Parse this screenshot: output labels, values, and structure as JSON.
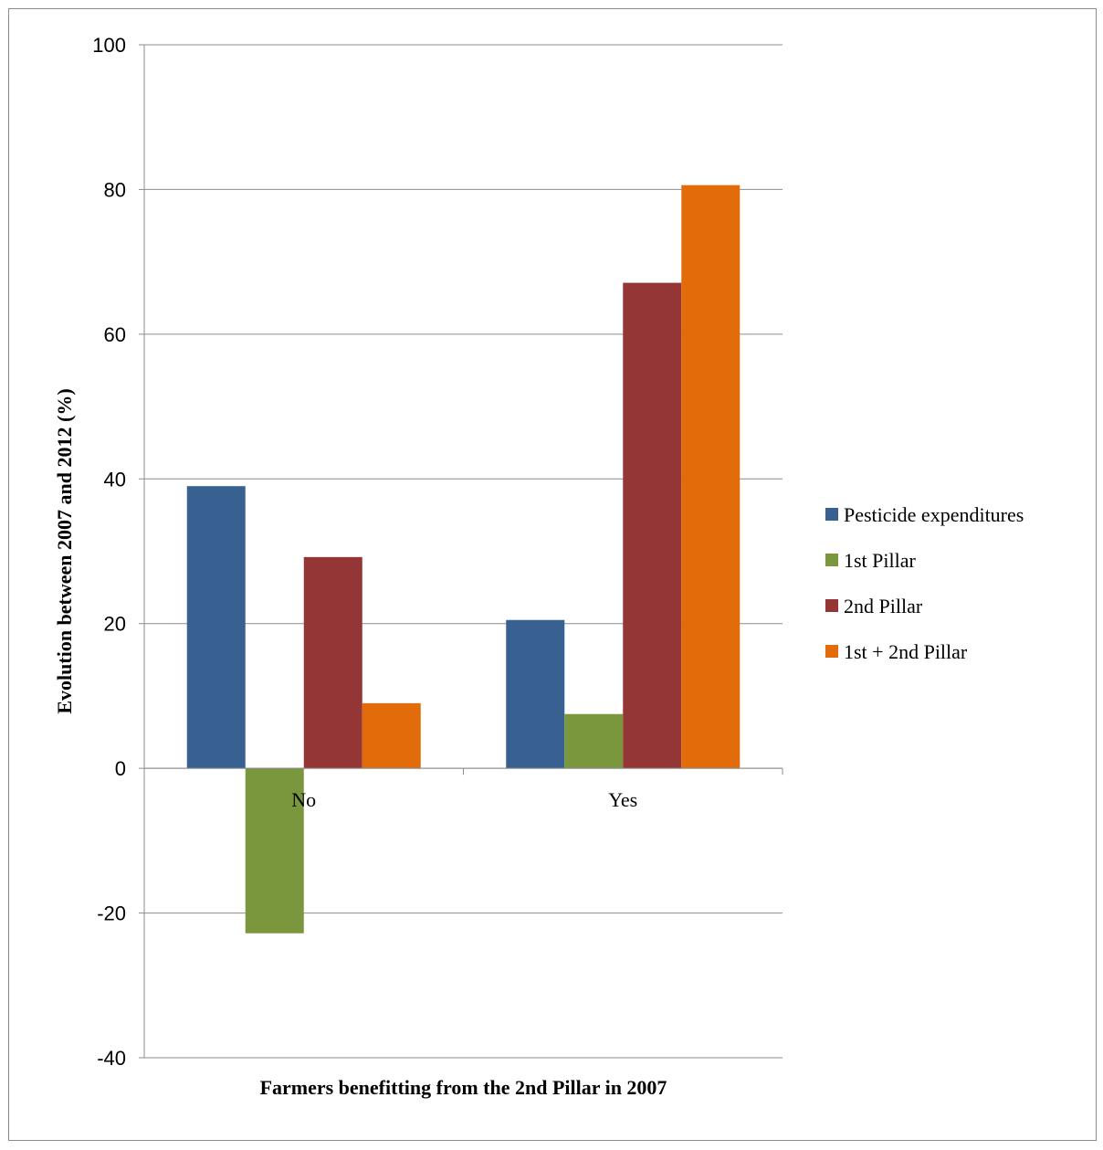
{
  "chart_data": {
    "type": "bar",
    "title": "",
    "xlabel": "Farmers benefitting from the 2nd Pillar in 2007",
    "ylabel": "Evolution between 2007 and 2012 (%)",
    "categories": [
      "No",
      "Yes"
    ],
    "ylim": [
      -40,
      100
    ],
    "yticks": [
      100,
      80,
      60,
      40,
      20,
      0,
      -20,
      -40
    ],
    "ytick_labels": [
      "100",
      "80",
      "60",
      "40",
      "20",
      "0",
      "-20",
      "-40"
    ],
    "grid": true,
    "legend_position": "right",
    "series": [
      {
        "name": "Pesticide expenditures",
        "color": "#386192",
        "values": [
          39.0,
          20.5
        ]
      },
      {
        "name": "1st Pillar",
        "color": "#7a973d",
        "values": [
          -22.8,
          7.5
        ]
      },
      {
        "name": "2nd Pillar",
        "color": "#953636",
        "values": [
          29.2,
          67.1
        ]
      },
      {
        "name": "1st + 2nd Pillar",
        "color": "#e36c0a",
        "values": [
          9.0,
          80.6
        ]
      }
    ]
  }
}
